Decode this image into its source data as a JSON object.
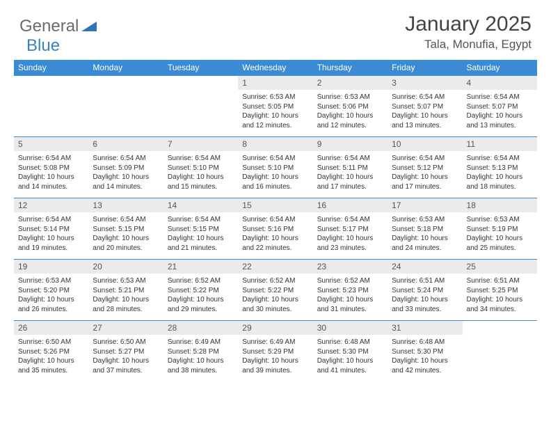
{
  "brand": {
    "name": "General",
    "sub": "Blue",
    "logo_color": "#2f74b5",
    "text_color": "#6b6b6b"
  },
  "title": "January 2025",
  "location": "Tala, Monufia, Egypt",
  "header_bg": "#3b8bd4",
  "daynum_bg": "#e9ebec",
  "border_color": "#3b8bd4",
  "days_of_week": [
    "Sunday",
    "Monday",
    "Tuesday",
    "Wednesday",
    "Thursday",
    "Friday",
    "Saturday"
  ],
  "weeks": [
    [
      null,
      null,
      null,
      {
        "n": "1",
        "sunrise": "6:53 AM",
        "sunset": "5:05 PM",
        "dl_h": "10",
        "dl_m": "12"
      },
      {
        "n": "2",
        "sunrise": "6:53 AM",
        "sunset": "5:06 PM",
        "dl_h": "10",
        "dl_m": "12"
      },
      {
        "n": "3",
        "sunrise": "6:54 AM",
        "sunset": "5:07 PM",
        "dl_h": "10",
        "dl_m": "13"
      },
      {
        "n": "4",
        "sunrise": "6:54 AM",
        "sunset": "5:07 PM",
        "dl_h": "10",
        "dl_m": "13"
      }
    ],
    [
      {
        "n": "5",
        "sunrise": "6:54 AM",
        "sunset": "5:08 PM",
        "dl_h": "10",
        "dl_m": "14"
      },
      {
        "n": "6",
        "sunrise": "6:54 AM",
        "sunset": "5:09 PM",
        "dl_h": "10",
        "dl_m": "14"
      },
      {
        "n": "7",
        "sunrise": "6:54 AM",
        "sunset": "5:10 PM",
        "dl_h": "10",
        "dl_m": "15"
      },
      {
        "n": "8",
        "sunrise": "6:54 AM",
        "sunset": "5:10 PM",
        "dl_h": "10",
        "dl_m": "16"
      },
      {
        "n": "9",
        "sunrise": "6:54 AM",
        "sunset": "5:11 PM",
        "dl_h": "10",
        "dl_m": "17"
      },
      {
        "n": "10",
        "sunrise": "6:54 AM",
        "sunset": "5:12 PM",
        "dl_h": "10",
        "dl_m": "17"
      },
      {
        "n": "11",
        "sunrise": "6:54 AM",
        "sunset": "5:13 PM",
        "dl_h": "10",
        "dl_m": "18"
      }
    ],
    [
      {
        "n": "12",
        "sunrise": "6:54 AM",
        "sunset": "5:14 PM",
        "dl_h": "10",
        "dl_m": "19"
      },
      {
        "n": "13",
        "sunrise": "6:54 AM",
        "sunset": "5:15 PM",
        "dl_h": "10",
        "dl_m": "20"
      },
      {
        "n": "14",
        "sunrise": "6:54 AM",
        "sunset": "5:15 PM",
        "dl_h": "10",
        "dl_m": "21"
      },
      {
        "n": "15",
        "sunrise": "6:54 AM",
        "sunset": "5:16 PM",
        "dl_h": "10",
        "dl_m": "22"
      },
      {
        "n": "16",
        "sunrise": "6:54 AM",
        "sunset": "5:17 PM",
        "dl_h": "10",
        "dl_m": "23"
      },
      {
        "n": "17",
        "sunrise": "6:53 AM",
        "sunset": "5:18 PM",
        "dl_h": "10",
        "dl_m": "24"
      },
      {
        "n": "18",
        "sunrise": "6:53 AM",
        "sunset": "5:19 PM",
        "dl_h": "10",
        "dl_m": "25"
      }
    ],
    [
      {
        "n": "19",
        "sunrise": "6:53 AM",
        "sunset": "5:20 PM",
        "dl_h": "10",
        "dl_m": "26"
      },
      {
        "n": "20",
        "sunrise": "6:53 AM",
        "sunset": "5:21 PM",
        "dl_h": "10",
        "dl_m": "28"
      },
      {
        "n": "21",
        "sunrise": "6:52 AM",
        "sunset": "5:22 PM",
        "dl_h": "10",
        "dl_m": "29"
      },
      {
        "n": "22",
        "sunrise": "6:52 AM",
        "sunset": "5:22 PM",
        "dl_h": "10",
        "dl_m": "30"
      },
      {
        "n": "23",
        "sunrise": "6:52 AM",
        "sunset": "5:23 PM",
        "dl_h": "10",
        "dl_m": "31"
      },
      {
        "n": "24",
        "sunrise": "6:51 AM",
        "sunset": "5:24 PM",
        "dl_h": "10",
        "dl_m": "33"
      },
      {
        "n": "25",
        "sunrise": "6:51 AM",
        "sunset": "5:25 PM",
        "dl_h": "10",
        "dl_m": "34"
      }
    ],
    [
      {
        "n": "26",
        "sunrise": "6:50 AM",
        "sunset": "5:26 PM",
        "dl_h": "10",
        "dl_m": "35"
      },
      {
        "n": "27",
        "sunrise": "6:50 AM",
        "sunset": "5:27 PM",
        "dl_h": "10",
        "dl_m": "37"
      },
      {
        "n": "28",
        "sunrise": "6:49 AM",
        "sunset": "5:28 PM",
        "dl_h": "10",
        "dl_m": "38"
      },
      {
        "n": "29",
        "sunrise": "6:49 AM",
        "sunset": "5:29 PM",
        "dl_h": "10",
        "dl_m": "39"
      },
      {
        "n": "30",
        "sunrise": "6:48 AM",
        "sunset": "5:30 PM",
        "dl_h": "10",
        "dl_m": "41"
      },
      {
        "n": "31",
        "sunrise": "6:48 AM",
        "sunset": "5:30 PM",
        "dl_h": "10",
        "dl_m": "42"
      },
      null
    ]
  ],
  "labels": {
    "sunrise": "Sunrise:",
    "sunset": "Sunset:",
    "daylight_prefix": "Daylight:",
    "hours_word": "hours",
    "and_word": "and",
    "minutes_word": "minutes."
  }
}
